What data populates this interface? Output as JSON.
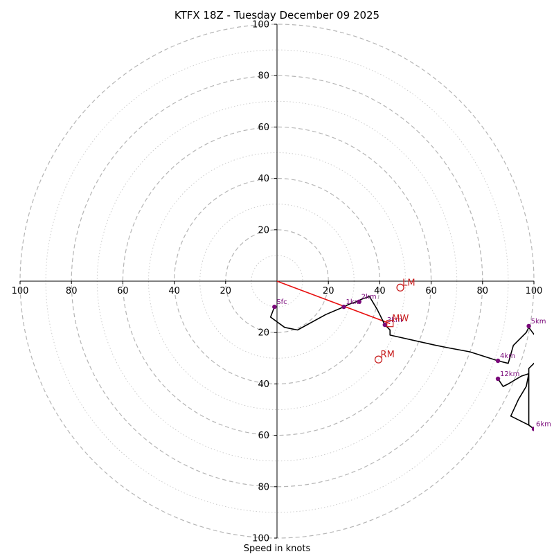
{
  "title": "KTFX 18Z - Tuesday December 09 2025",
  "xlabel": "Speed in knots",
  "colors": {
    "hodograph": "#000000",
    "height_marker": "#7a0a7a",
    "motion": "#c81e1e",
    "mean_wind_vector": "#e81010",
    "ring_major": "#b5b5b5",
    "ring_minor": "#cccccc",
    "axis": "#000000"
  },
  "chart_data": {
    "type": "hodograph",
    "xlim": [
      -100,
      100
    ],
    "ylim": [
      -100,
      100
    ],
    "rings_major": [
      20,
      40,
      60,
      80,
      100
    ],
    "rings_minor": [
      10,
      30,
      50,
      70,
      90
    ],
    "ticks_x": [
      {
        "value": -100,
        "label": "100"
      },
      {
        "value": -80,
        "label": "80"
      },
      {
        "value": -60,
        "label": "60"
      },
      {
        "value": -40,
        "label": "40"
      },
      {
        "value": -20,
        "label": "20"
      },
      {
        "value": 20,
        "label": "20"
      },
      {
        "value": 40,
        "label": "40"
      },
      {
        "value": 60,
        "label": "60"
      },
      {
        "value": 80,
        "label": "80"
      },
      {
        "value": 100,
        "label": "100"
      }
    ],
    "ticks_y": [
      {
        "value": 100,
        "label": "100"
      },
      {
        "value": 80,
        "label": "80"
      },
      {
        "value": 60,
        "label": "60"
      },
      {
        "value": 40,
        "label": "40"
      },
      {
        "value": 20,
        "label": "20"
      },
      {
        "value": -20,
        "label": "20"
      },
      {
        "value": -40,
        "label": "40"
      },
      {
        "value": -60,
        "label": "60"
      },
      {
        "value": -80,
        "label": "80"
      },
      {
        "value": -100,
        "label": "100"
      }
    ],
    "hodograph_uv": [
      [
        -1,
        -10
      ],
      [
        -2.5,
        -14
      ],
      [
        3,
        -18
      ],
      [
        8,
        -19
      ],
      [
        19,
        -13
      ],
      [
        26,
        -10
      ],
      [
        28,
        -9
      ],
      [
        31,
        -8
      ],
      [
        33,
        -7
      ],
      [
        36,
        -6
      ],
      [
        39,
        -11
      ],
      [
        42,
        -17
      ],
      [
        44,
        -19
      ],
      [
        44,
        -21
      ],
      [
        62,
        -25
      ],
      [
        67,
        -26
      ],
      [
        75,
        -27.5
      ],
      [
        86,
        -31
      ],
      [
        90,
        -32
      ],
      [
        92,
        -25
      ],
      [
        97,
        -20
      ],
      [
        98,
        -18
      ],
      [
        101,
        -22
      ],
      [
        101,
        -31
      ],
      [
        98,
        -34
      ],
      [
        98,
        -36
      ],
      [
        97,
        -41
      ],
      [
        94,
        -46
      ],
      [
        91,
        -52.5
      ],
      [
        98,
        -56
      ],
      [
        100,
        -57.5
      ],
      [
        98,
        -56
      ],
      [
        98,
        -50
      ],
      [
        98,
        -43
      ],
      [
        98,
        -36
      ],
      [
        95,
        -37
      ],
      [
        90,
        -40
      ],
      [
        88,
        -41
      ],
      [
        86,
        -38
      ]
    ],
    "height_markers": [
      {
        "label": "Sfc",
        "u": -1,
        "v": -10
      },
      {
        "label": "1km",
        "u": 26,
        "v": -10
      },
      {
        "label": "2km",
        "u": 32,
        "v": -8
      },
      {
        "label": "3km",
        "u": 42,
        "v": -17
      },
      {
        "label": "4km",
        "u": 86,
        "v": -31
      },
      {
        "label": "5km",
        "u": 98,
        "v": -17.5
      },
      {
        "label": "6km",
        "u": 100,
        "v": -57.5
      },
      {
        "label": "12km",
        "u": 86,
        "v": -38
      }
    ],
    "storm_motion": [
      {
        "label": "LM",
        "u": 48,
        "v": -2.5,
        "marker": "circle"
      },
      {
        "label": "RM",
        "u": 39.5,
        "v": -30.5,
        "marker": "circle"
      },
      {
        "label": "MW",
        "u": 44,
        "v": -16.5,
        "marker": "square"
      }
    ],
    "mean_wind_vector": {
      "from": [
        0,
        0
      ],
      "to": [
        44,
        -16.5
      ]
    }
  }
}
